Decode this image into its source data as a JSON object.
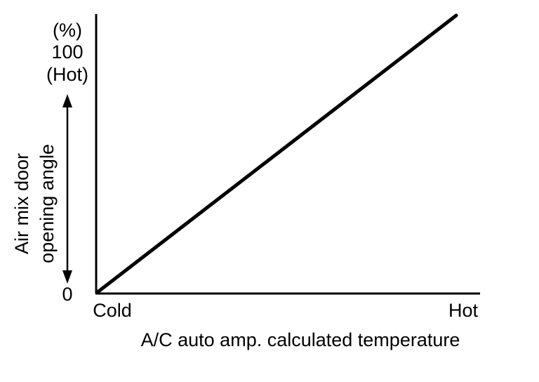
{
  "chart_data": {
    "type": "line",
    "title": "",
    "xlabel": "A/C auto amp. calculated temperature",
    "ylabel_lines": [
      "Air mix door",
      "opening angle"
    ],
    "y_unit": "(%)",
    "y_top_tick": "100",
    "y_top_note": "(Hot)",
    "y_bottom_tick": "0",
    "x_tick_left": "Cold",
    "x_tick_right": "Hot",
    "xlim": [
      0,
      1
    ],
    "ylim": [
      0,
      100
    ],
    "grid": false,
    "series": [
      {
        "x": [
          0,
          1
        ],
        "y": [
          0,
          100
        ]
      }
    ]
  }
}
